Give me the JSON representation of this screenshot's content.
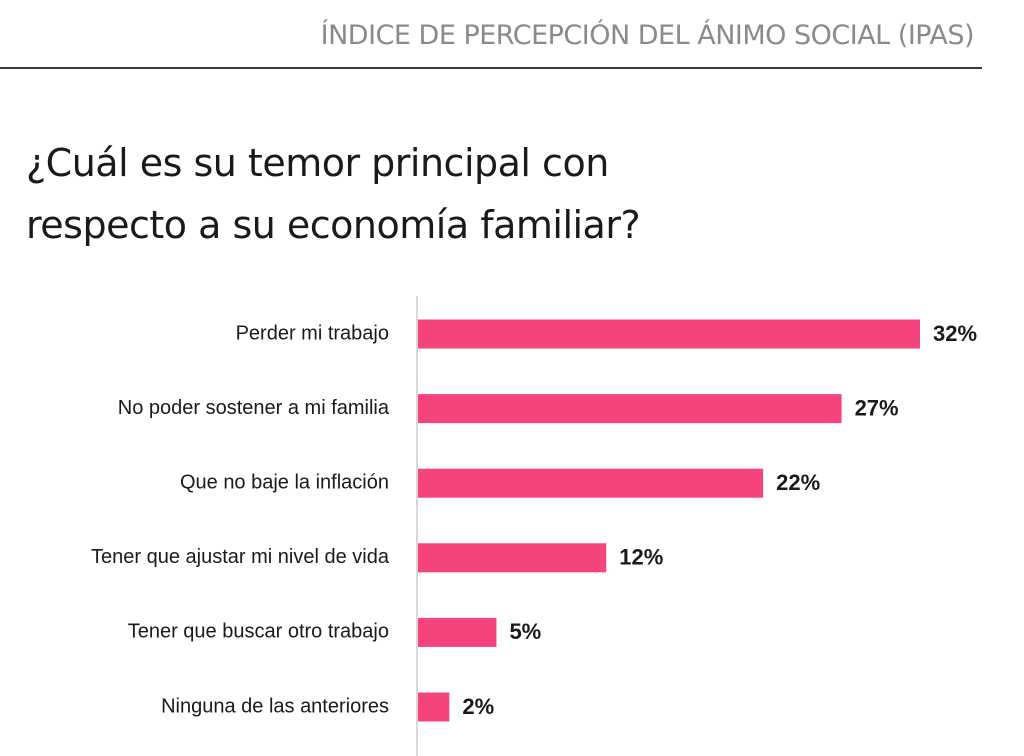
{
  "header": {
    "title": "ÍNDICE DE PERCEPCIÓN DEL ÁNIMO SOCIAL (IPAS)"
  },
  "question": {
    "line1": "¿Cuál es su temor principal con",
    "line2": "respecto a su economía familiar?"
  },
  "colors": {
    "bar": "#f5437c",
    "axis": "#cccccc"
  },
  "chart_data": {
    "type": "bar",
    "orientation": "horizontal",
    "title": "¿Cuál es su temor principal con respecto a su economía familiar?",
    "categories": [
      "Perder mi trabajo",
      "No poder sostener a mi familia",
      "Que no baje la inflación",
      "Tener que ajustar mi nivel de vida",
      "Tener que buscar otro trabajo",
      "Ninguna de las anteriores"
    ],
    "values": [
      32,
      27,
      22,
      12,
      5,
      2
    ],
    "value_labels": [
      "32%",
      "27%",
      "22%",
      "12%",
      "5%",
      "2%"
    ],
    "unit": "%",
    "xlim": [
      0,
      32
    ],
    "grid": false,
    "legend": "none"
  }
}
